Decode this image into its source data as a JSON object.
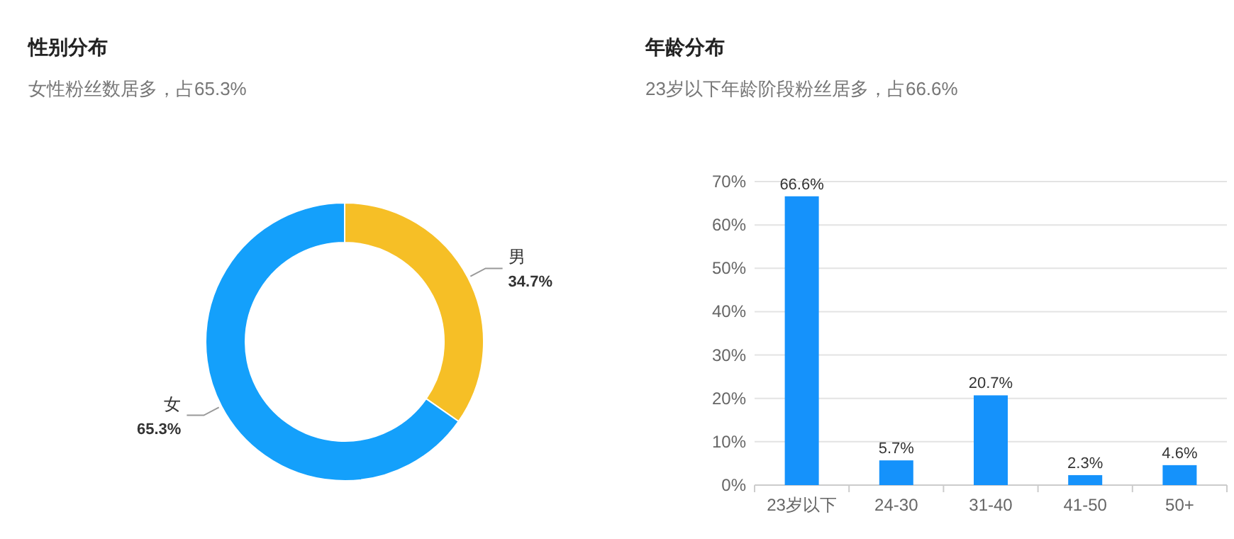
{
  "chart_data": [
    {
      "type": "donut",
      "title": "性别分布",
      "subtitle": "女性粉丝数居多，占65.3%",
      "categories": [
        "男",
        "女"
      ],
      "values": [
        34.7,
        65.3
      ],
      "colors": [
        "#f6bf26",
        "#14a0fb"
      ],
      "value_labels": [
        "34.7%",
        "65.3%"
      ]
    },
    {
      "type": "bar",
      "title": "年龄分布",
      "subtitle": "23岁以下年龄阶段粉丝居多，占66.6%",
      "categories": [
        "23岁以下",
        "24-30",
        "31-40",
        "41-50",
        "50+"
      ],
      "values": [
        66.6,
        5.7,
        20.7,
        2.3,
        4.6
      ],
      "color": "#1592fb",
      "value_labels": [
        "66.6%",
        "5.7%",
        "20.7%",
        "2.3%",
        "4.6%"
      ],
      "ylim": [
        0,
        70
      ],
      "yticks": [
        {
          "value": 0,
          "label": "0%"
        },
        {
          "value": 10,
          "label": "10%"
        },
        {
          "value": 20,
          "label": "20%"
        },
        {
          "value": 30,
          "label": "30%"
        },
        {
          "value": 40,
          "label": "40%"
        },
        {
          "value": 50,
          "label": "50%"
        },
        {
          "value": 60,
          "label": "60%"
        },
        {
          "value": 70,
          "label": "70%"
        }
      ],
      "grid": "y"
    }
  ]
}
